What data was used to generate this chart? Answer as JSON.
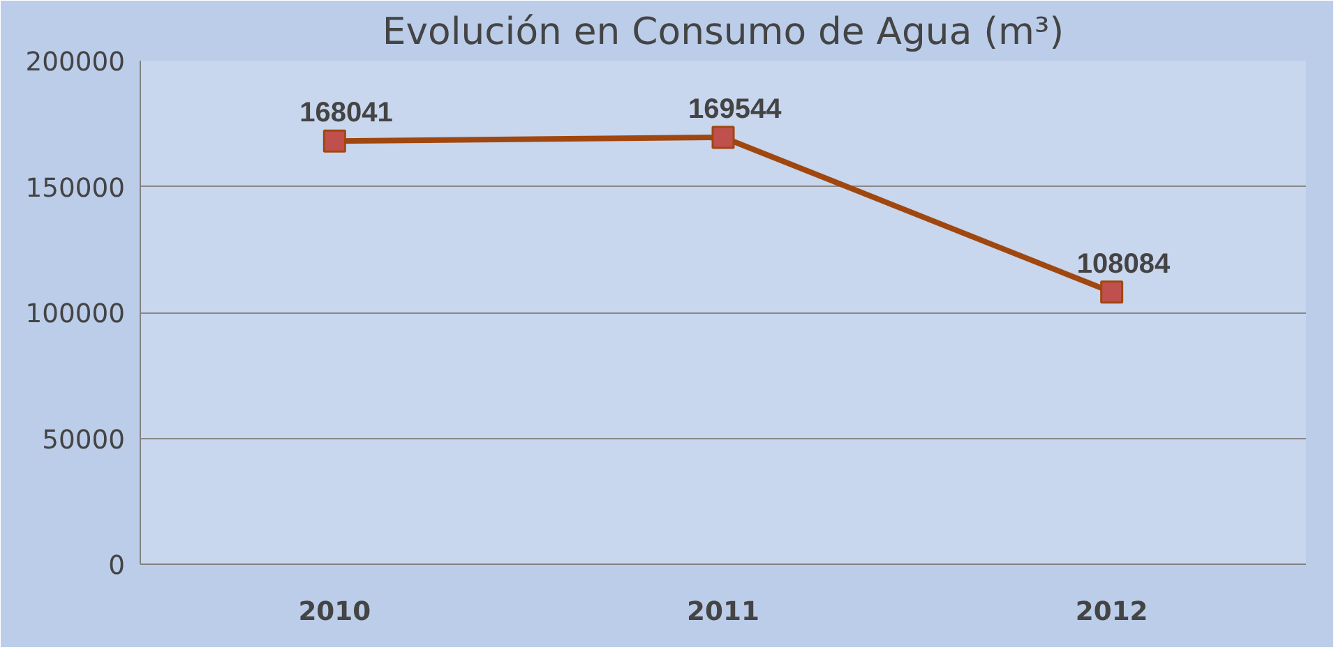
{
  "chart_data": {
    "type": "line",
    "title": "Evolución en Consumo de Agua (m³)",
    "categories": [
      "2010",
      "2011",
      "2012"
    ],
    "series": [
      {
        "color": "#a0470f",
        "values": [
          168041,
          169544,
          108084
        ]
      }
    ],
    "ylim": [
      0,
      200000
    ],
    "yticks": [
      0,
      50000,
      100000,
      150000,
      200000
    ],
    "grid": "y",
    "marker": "square",
    "line_style": "solid",
    "data_labels": true
  }
}
